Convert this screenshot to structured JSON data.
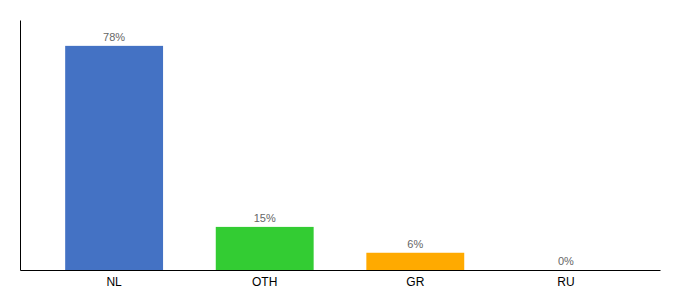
{
  "chart_data": {
    "type": "bar",
    "categories": [
      "NL",
      "OTH",
      "GR",
      "RU"
    ],
    "values": [
      78,
      15,
      6,
      0
    ],
    "value_labels": [
      "78%",
      "15%",
      "6%",
      "0%"
    ],
    "colors": [
      "#4472c4",
      "#33cc33",
      "#ffaa00",
      "#4472c4"
    ],
    "ylim": [
      0,
      87
    ],
    "data_labels": true,
    "tick_labels": "x"
  }
}
